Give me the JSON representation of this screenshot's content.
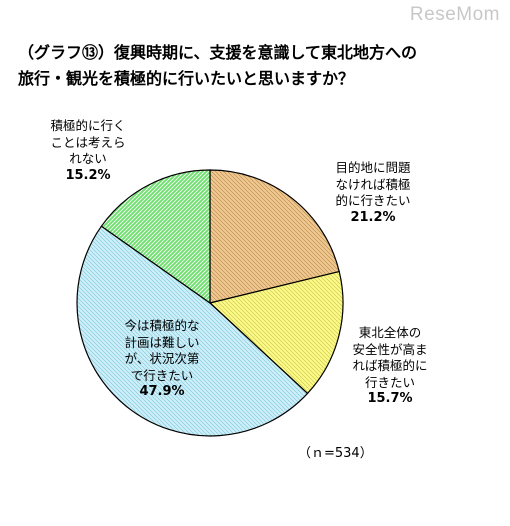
{
  "watermark": "ReseMom",
  "chart_data": {
    "type": "pie",
    "title_lines": [
      "（グラフ⑬）復興時期に、支援を意識して東北地方への",
      "旅行・観光を積極的に行いたいと思いますか？"
    ],
    "slices": [
      {
        "label": "目的地に問題\nなければ積極\n的に行きたい",
        "value": 21.2,
        "value_text": "21.2%",
        "color": "#f0c890",
        "hatch": "#b0884c"
      },
      {
        "label": "東北全体の\n安全性が高ま\nれば積極的に\n行きたい",
        "value": 15.7,
        "value_text": "15.7%",
        "color": "#fbfa8a",
        "hatch": "#c6c240"
      },
      {
        "label": "今は積極的な\n計画は難しい\nが、状況次第\nで行きたい",
        "value": 47.9,
        "value_text": "47.9%",
        "color": "#cdeff8",
        "hatch": "#7cc4dc"
      },
      {
        "label": "積極的に行く\nことは考えら\nれない",
        "value": 15.2,
        "value_text": "15.2%",
        "color": "#6ee06e",
        "hatch": "#ffffff"
      }
    ],
    "note": "（ｎ=534）"
  }
}
